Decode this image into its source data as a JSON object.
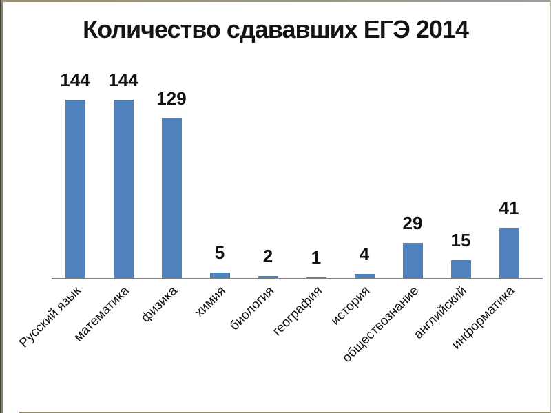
{
  "chart_data": {
    "type": "bar",
    "title": "Количество сдававших ЕГЭ 2014",
    "categories": [
      "Русский язык",
      "математика",
      "физика",
      "химия",
      "биология",
      "география",
      "история",
      "обществознание",
      "английский",
      "информатика"
    ],
    "values": [
      144,
      144,
      129,
      5,
      2,
      1,
      4,
      29,
      15,
      41
    ],
    "xlabel": "",
    "ylabel": "",
    "ylim": [
      0,
      160
    ],
    "grid": false,
    "legend": false,
    "data_labels": true,
    "category_label_rotation": 45,
    "bar_color": "#4f81bd",
    "axis_color": "#808080"
  }
}
